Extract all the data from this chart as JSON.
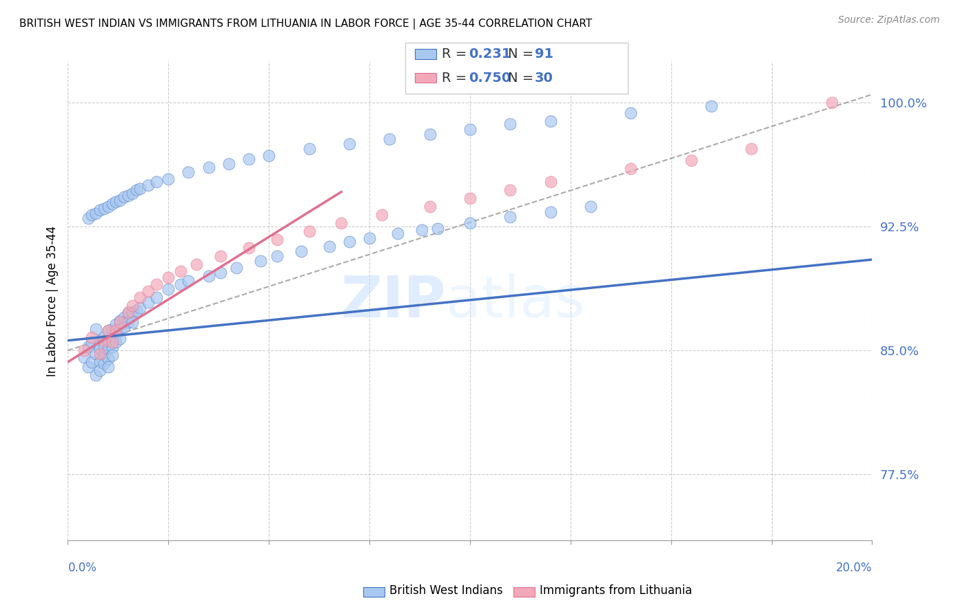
{
  "title": "BRITISH WEST INDIAN VS IMMIGRANTS FROM LITHUANIA IN LABOR FORCE | AGE 35-44 CORRELATION CHART",
  "source": "Source: ZipAtlas.com",
  "ylabel": "In Labor Force | Age 35-44",
  "ytick_labels": [
    "77.5%",
    "85.0%",
    "92.5%",
    "100.0%"
  ],
  "ytick_values": [
    0.775,
    0.85,
    0.925,
    1.0
  ],
  "xlim": [
    0.0,
    0.2
  ],
  "ylim": [
    0.735,
    1.025
  ],
  "color_blue": "#A8C8F0",
  "color_pink": "#F2A8B8",
  "color_blue_line": "#4472C4",
  "color_pink_line": "#E07090",
  "color_dashed": "#AAAAAA",
  "watermark_zip": "ZIP",
  "watermark_atlas": "atlas",
  "blue_scatter_x": [
    0.004,
    0.005,
    0.005,
    0.006,
    0.006,
    0.007,
    0.007,
    0.007,
    0.008,
    0.008,
    0.008,
    0.008,
    0.009,
    0.009,
    0.009,
    0.009,
    0.01,
    0.01,
    0.01,
    0.01,
    0.01,
    0.011,
    0.011,
    0.011,
    0.011,
    0.012,
    0.012,
    0.012,
    0.013,
    0.013,
    0.013,
    0.014,
    0.014,
    0.015,
    0.015,
    0.016,
    0.016,
    0.017,
    0.018,
    0.02,
    0.022,
    0.025,
    0.028,
    0.03,
    0.035,
    0.038,
    0.042,
    0.048,
    0.052,
    0.058,
    0.065,
    0.07,
    0.075,
    0.082,
    0.088,
    0.092,
    0.1,
    0.11,
    0.12,
    0.13,
    0.005,
    0.006,
    0.007,
    0.008,
    0.009,
    0.01,
    0.011,
    0.012,
    0.013,
    0.014,
    0.015,
    0.016,
    0.017,
    0.018,
    0.02,
    0.022,
    0.025,
    0.03,
    0.035,
    0.04,
    0.045,
    0.05,
    0.06,
    0.07,
    0.08,
    0.09,
    0.1,
    0.11,
    0.12,
    0.14,
    0.16
  ],
  "blue_scatter_y": [
    0.846,
    0.852,
    0.84,
    0.855,
    0.843,
    0.863,
    0.848,
    0.835,
    0.856,
    0.851,
    0.843,
    0.838,
    0.858,
    0.852,
    0.847,
    0.842,
    0.862,
    0.856,
    0.851,
    0.845,
    0.84,
    0.863,
    0.857,
    0.852,
    0.847,
    0.866,
    0.86,
    0.855,
    0.868,
    0.863,
    0.857,
    0.87,
    0.864,
    0.873,
    0.867,
    0.873,
    0.867,
    0.874,
    0.876,
    0.879,
    0.882,
    0.887,
    0.89,
    0.892,
    0.895,
    0.897,
    0.9,
    0.904,
    0.907,
    0.91,
    0.913,
    0.916,
    0.918,
    0.921,
    0.923,
    0.924,
    0.927,
    0.931,
    0.934,
    0.937,
    0.93,
    0.932,
    0.933,
    0.935,
    0.936,
    0.937,
    0.939,
    0.94,
    0.941,
    0.943,
    0.944,
    0.945,
    0.947,
    0.948,
    0.95,
    0.952,
    0.954,
    0.958,
    0.961,
    0.963,
    0.966,
    0.968,
    0.972,
    0.975,
    0.978,
    0.981,
    0.984,
    0.987,
    0.989,
    0.994,
    0.998
  ],
  "pink_scatter_x": [
    0.004,
    0.006,
    0.008,
    0.009,
    0.01,
    0.011,
    0.012,
    0.013,
    0.015,
    0.016,
    0.018,
    0.02,
    0.022,
    0.025,
    0.028,
    0.032,
    0.038,
    0.045,
    0.052,
    0.06,
    0.068,
    0.078,
    0.09,
    0.1,
    0.11,
    0.12,
    0.14,
    0.155,
    0.17,
    0.19
  ],
  "pink_scatter_y": [
    0.85,
    0.858,
    0.848,
    0.856,
    0.862,
    0.855,
    0.862,
    0.867,
    0.873,
    0.877,
    0.882,
    0.886,
    0.89,
    0.894,
    0.898,
    0.902,
    0.907,
    0.912,
    0.917,
    0.922,
    0.927,
    0.932,
    0.937,
    0.942,
    0.947,
    0.952,
    0.96,
    0.965,
    0.972,
    1.0
  ],
  "blue_line_x": [
    0.0,
    0.2
  ],
  "blue_line_y": [
    0.856,
    0.905
  ],
  "pink_line_x": [
    0.0,
    0.068
  ],
  "pink_line_y": [
    0.843,
    0.946
  ],
  "dashed_line_x": [
    0.0,
    0.2
  ],
  "dashed_line_y": [
    0.85,
    1.005
  ],
  "xtick_positions": [
    0.0,
    0.025,
    0.05,
    0.075,
    0.1,
    0.125,
    0.15,
    0.175,
    0.2
  ]
}
